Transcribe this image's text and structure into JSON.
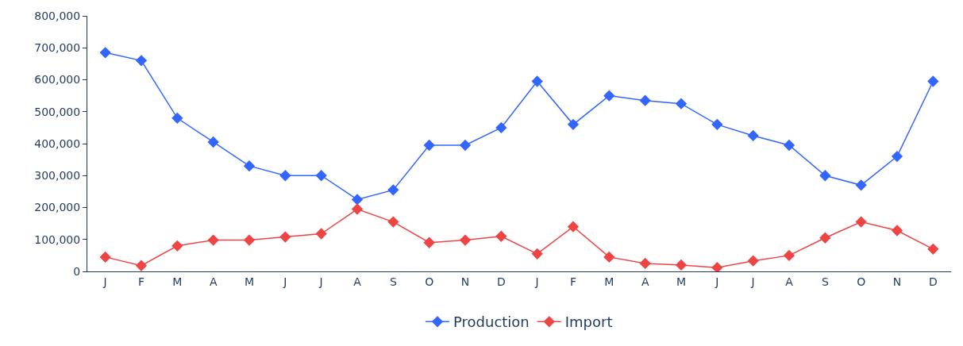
{
  "chart_data": {
    "type": "line",
    "categories": [
      "J",
      "F",
      "M",
      "A",
      "M",
      "J",
      "J",
      "A",
      "S",
      "O",
      "N",
      "D",
      "J",
      "F",
      "M",
      "A",
      "M",
      "J",
      "J",
      "A",
      "S",
      "O",
      "N",
      "D"
    ],
    "series": [
      {
        "name": "Production",
        "color": "#3366ff",
        "values": [
          685000,
          660000,
          480000,
          405000,
          330000,
          300000,
          300000,
          225000,
          255000,
          395000,
          395000,
          450000,
          595000,
          460000,
          550000,
          535000,
          525000,
          460000,
          425000,
          395000,
          300000,
          270000,
          360000,
          595000
        ]
      },
      {
        "name": "Import",
        "color": "#ee4444",
        "values": [
          45000,
          18000,
          80000,
          98000,
          98000,
          108000,
          118000,
          195000,
          155000,
          90000,
          98000,
          110000,
          55000,
          140000,
          45000,
          25000,
          20000,
          12000,
          33000,
          50000,
          105000,
          155000,
          128000,
          70000
        ]
      }
    ],
    "ylim": [
      0,
      800000
    ],
    "yticks": [
      {
        "value": 0,
        "label": "0"
      },
      {
        "value": 100000,
        "label": "100,000"
      },
      {
        "value": 200000,
        "label": "200,000"
      },
      {
        "value": 300000,
        "label": "300,000"
      },
      {
        "value": 400000,
        "label": "400,000"
      },
      {
        "value": 500000,
        "label": "500,000"
      },
      {
        "value": 600000,
        "label": "600,000"
      },
      {
        "value": 700000,
        "label": "700,000"
      },
      {
        "value": 800000,
        "label": "800,000"
      }
    ],
    "legend": "bottom",
    "marker": "diamond",
    "line_style": "solid"
  }
}
